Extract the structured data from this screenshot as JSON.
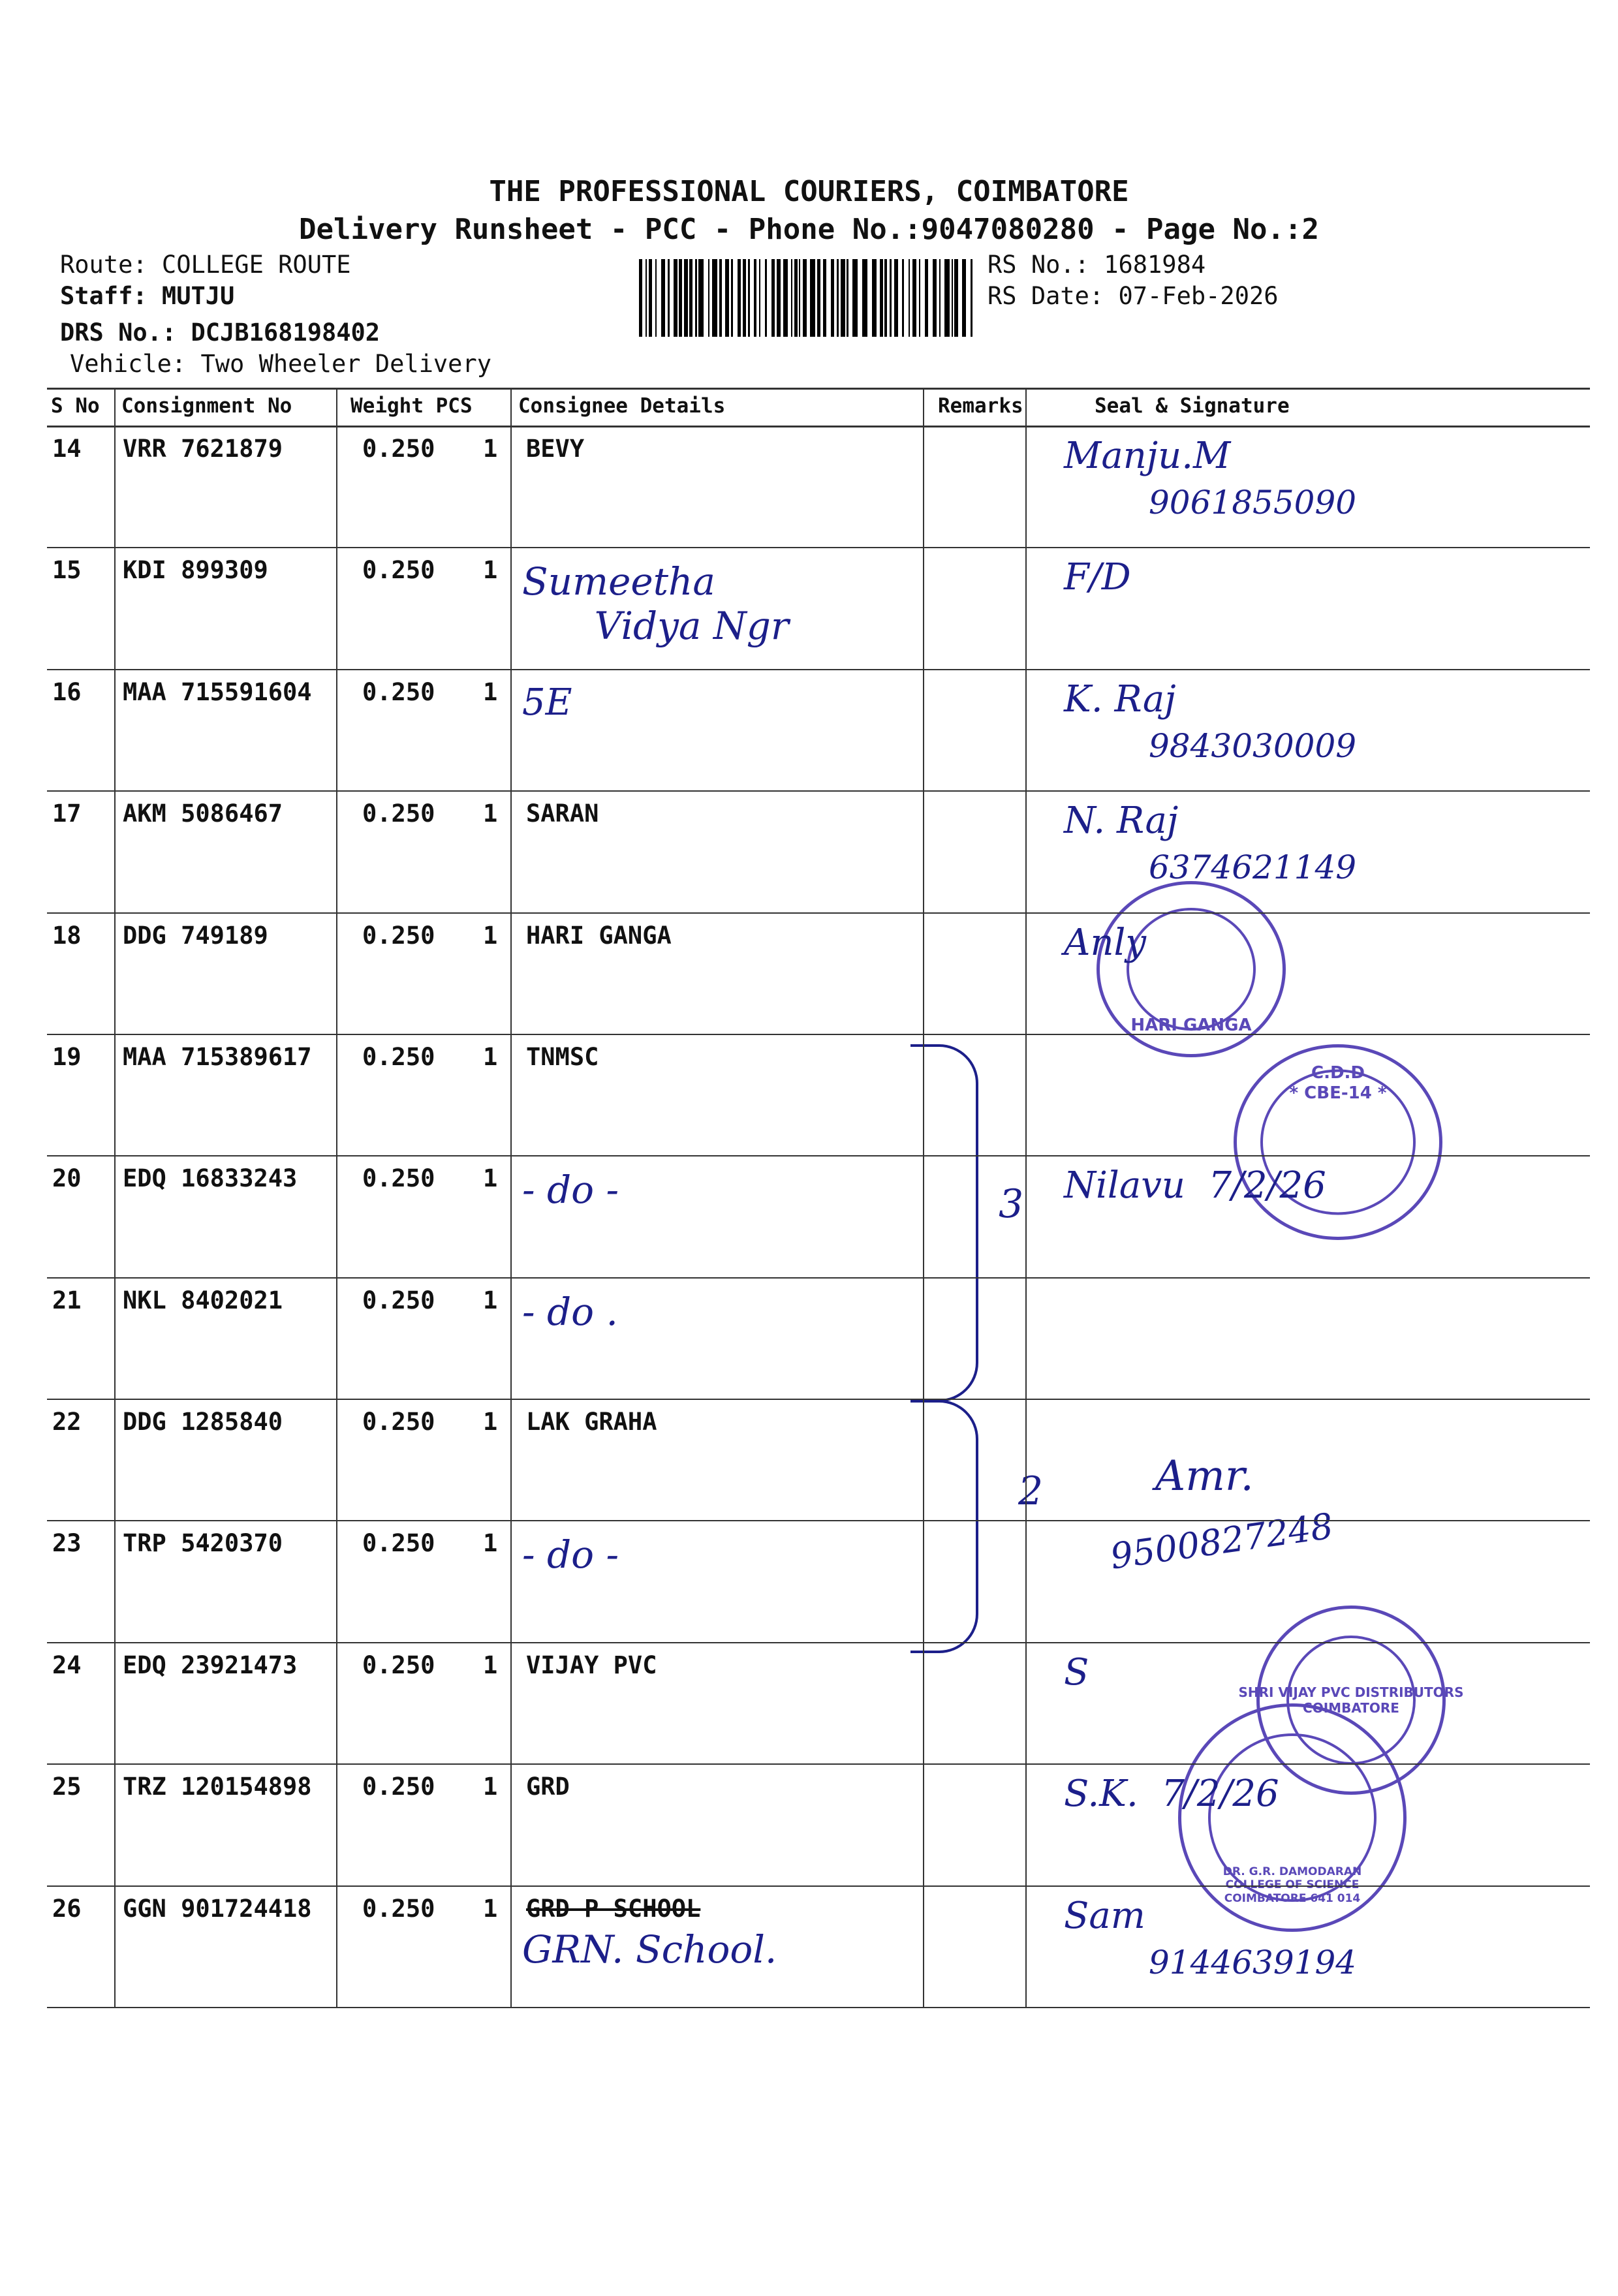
{
  "header": {
    "company": "THE PROFESSIONAL COURIERS, COIMBATORE",
    "subtitle": "Delivery Runsheet - PCC - Phone No.:9047080280 - Page No.:2",
    "route": "Route: COLLEGE ROUTE",
    "staff": "Staff: MUTJU",
    "drs_no": "DRS No.: DCJB168198402",
    "vehicle": "Vehicle: Two Wheeler Delivery",
    "rs_no": "RS No.: 1681984",
    "rs_date": "RS Date: 07-Feb-2026"
  },
  "columns": {
    "sno": "S No",
    "consignment": "Consignment No",
    "weight_pcs": "Weight  PCS",
    "consignee": "Consignee Details",
    "remarks": "Remarks",
    "seal": "Seal & Signature"
  },
  "rows": [
    {
      "sno": "14",
      "consignment": "VRR 7621879",
      "weight": "0.250",
      "pcs": "1",
      "consignee": "BEVY",
      "consignee_hw": "",
      "sign": "Manju.M",
      "phone": "9061855090"
    },
    {
      "sno": "15",
      "consignment": "KDI 899309",
      "weight": "0.250",
      "pcs": "1",
      "consignee": "",
      "consignee_hw": "Sumeetha\n      Vidya Ngr",
      "sign": "F/D",
      "phone": ""
    },
    {
      "sno": "16",
      "consignment": "MAA 715591604",
      "weight": "0.250",
      "pcs": "1",
      "consignee": "",
      "consignee_hw": "5E",
      "sign": "K. Raj",
      "phone": "9843030009"
    },
    {
      "sno": "17",
      "consignment": "AKM 5086467",
      "weight": "0.250",
      "pcs": "1",
      "consignee": "SARAN",
      "consignee_hw": "",
      "sign": "N. Raj",
      "phone": "6374621149"
    },
    {
      "sno": "18",
      "consignment": "DDG 749189",
      "weight": "0.250",
      "pcs": "1",
      "consignee": "HARI  GANGA",
      "consignee_hw": "",
      "sign": "Anly",
      "phone": ""
    },
    {
      "sno": "19",
      "consignment": "MAA 715389617",
      "weight": "0.250",
      "pcs": "1",
      "consignee": "TNMSC",
      "consignee_hw": "",
      "sign": "",
      "phone": ""
    },
    {
      "sno": "20",
      "consignment": "EDQ 16833243",
      "weight": "0.250",
      "pcs": "1",
      "consignee": "",
      "consignee_hw": "- do -",
      "sign": "Nilavu  7/2/26",
      "phone": ""
    },
    {
      "sno": "21",
      "consignment": "NKL 8402021",
      "weight": "0.250",
      "pcs": "1",
      "consignee": "",
      "consignee_hw": "- do .",
      "sign": "",
      "phone": ""
    },
    {
      "sno": "22",
      "consignment": "DDG 1285840",
      "weight": "0.250",
      "pcs": "1",
      "consignee": "LAK  GRAHA",
      "consignee_hw": "",
      "sign": "",
      "phone": ""
    },
    {
      "sno": "23",
      "consignment": "TRP 5420370",
      "weight": "0.250",
      "pcs": "1",
      "consignee": "",
      "consignee_hw": "- do -",
      "sign": "",
      "phone": ""
    },
    {
      "sno": "24",
      "consignment": "EDQ 23921473",
      "weight": "0.250",
      "pcs": "1",
      "consignee": "VIJAY  PVC",
      "consignee_hw": "",
      "sign": "S",
      "phone": ""
    },
    {
      "sno": "25",
      "consignment": "TRZ 120154898",
      "weight": "0.250",
      "pcs": "1",
      "consignee": "GRD",
      "consignee_hw": "",
      "sign": "S.K.  7/2/26",
      "phone": ""
    },
    {
      "sno": "26",
      "consignment": "GGN 901724418",
      "weight": "0.250",
      "pcs": "1",
      "consignee": "GRD  P SCHOOL",
      "consignee_struck": true,
      "consignee_hw": "GRN. School.",
      "sign": "Sam",
      "phone": "9144639194"
    }
  ],
  "annotations": {
    "bracket_19_21": "3",
    "bracket_22_23": "2",
    "sign_22_23": "Amr.",
    "phone_22_23": "9500827248"
  },
  "stamps": {
    "hari_ganga": "HARI GANGA",
    "cdd": "C.D.D\n* CBE-14 *",
    "vijay": "SHRI VIJAY PVC DISTRIBUTORS\nCOIMBATORE",
    "grd": "DR. G.R. DAMODARAN COLLEGE OF SCIENCE\nCOIMBATORE 641 014"
  },
  "colors": {
    "ink": "#1c1f8a",
    "stamp": "#5a48b8",
    "text": "#111111"
  }
}
